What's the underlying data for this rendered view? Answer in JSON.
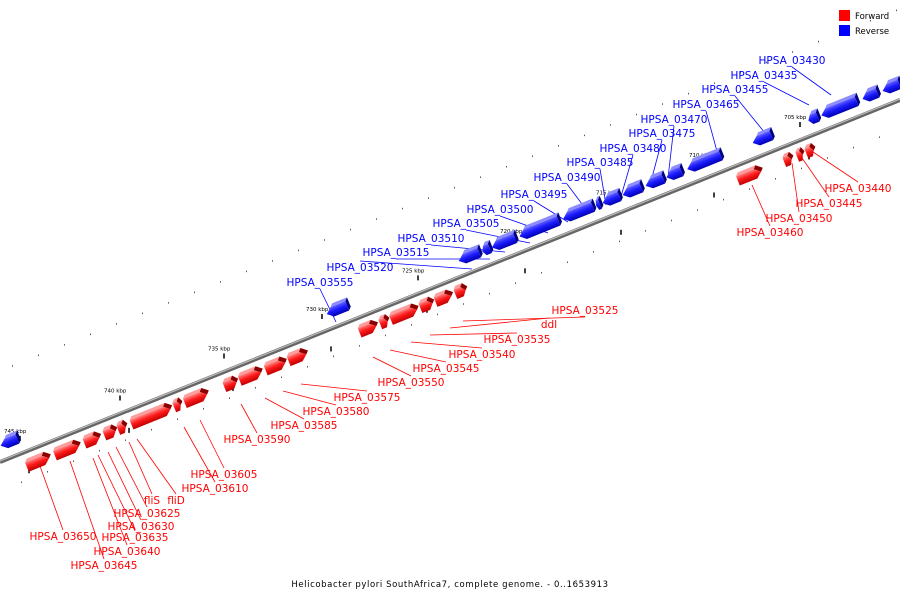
{
  "legend": {
    "forward_label": "Forward",
    "reverse_label": "Reverse",
    "forward_color": "#ff0000",
    "reverse_color": "#0000ff"
  },
  "caption": "Helicobacter pylori SouthAfrica7, complete genome. - 0..1653913",
  "ticks": [
    "705 kbp",
    "710 kbp",
    "715 kbp",
    "720 kbp",
    "725 kbp",
    "730 kbp",
    "735 kbp",
    "740 kbp",
    "745 kbp"
  ],
  "reverse_genes": [
    "HPSA_03430",
    "HPSA_03435",
    "HPSA_03455",
    "HPSA_03465",
    "HPSA_03470",
    "HPSA_03475",
    "HPSA_03480",
    "HPSA_03485",
    "HPSA_03490",
    "HPSA_03495",
    "HPSA_03500",
    "HPSA_03505",
    "HPSA_03510",
    "HPSA_03515",
    "HPSA_03520",
    "HPSA_03555"
  ],
  "forward_genes": [
    "HPSA_03440",
    "HPSA_03445",
    "HPSA_03450",
    "HPSA_03460",
    "HPSA_03525",
    "ddl",
    "HPSA_03535",
    "HPSA_03540",
    "HPSA_03545",
    "HPSA_03550",
    "HPSA_03575",
    "HPSA_03580",
    "HPSA_03585",
    "HPSA_03590",
    "HPSA_03605",
    "HPSA_03610",
    "fliS",
    "fliD",
    "HPSA_03625",
    "HPSA_03630",
    "HPSA_03635",
    "HPSA_03640",
    "HPSA_03645",
    "HPSA_03650"
  ]
}
